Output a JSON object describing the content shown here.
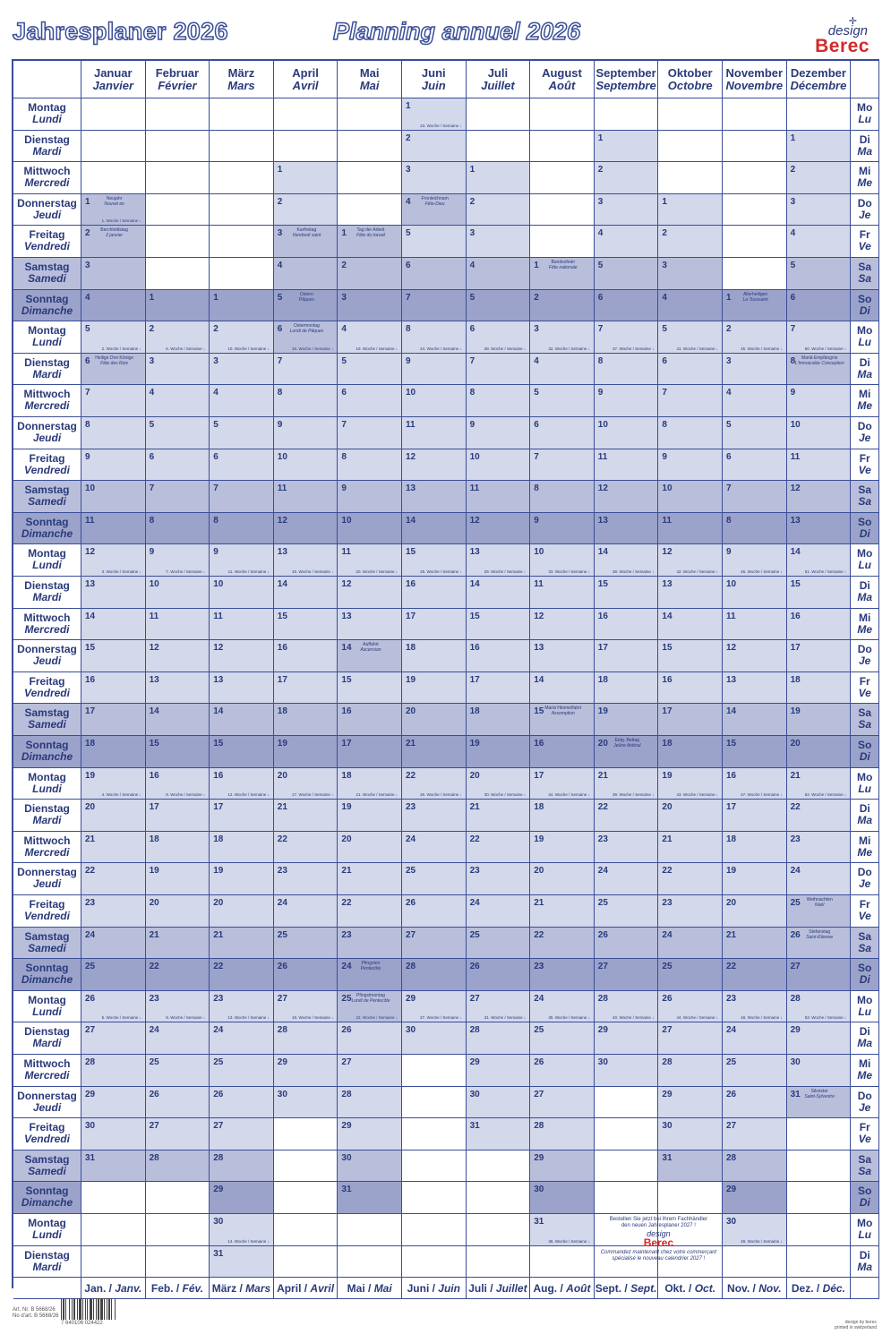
{
  "header": {
    "title_de": "Jahresplaner 2026",
    "title_fr": "Planning annuel 2026",
    "logo_design": "design",
    "logo_brand": "Berec",
    "brand_color": "#d32a2a"
  },
  "months": [
    {
      "de": "Januar",
      "fr": "Janvier",
      "foot_de": "Jan.",
      "foot_fr": "Janv.",
      "start_row": 3,
      "days": 31
    },
    {
      "de": "Februar",
      "fr": "Février",
      "foot_de": "Feb.",
      "foot_fr": "Fév.",
      "start_row": 6,
      "days": 28
    },
    {
      "de": "März",
      "fr": "Mars",
      "foot_de": "März",
      "foot_fr": "Mars",
      "start_row": 6,
      "days": 31
    },
    {
      "de": "April",
      "fr": "Avril",
      "foot_de": "April",
      "foot_fr": "Avril",
      "start_row": 2,
      "days": 30
    },
    {
      "de": "Mai",
      "fr": "Mai",
      "foot_de": "Mai",
      "foot_fr": "Mai",
      "start_row": 4,
      "days": 31
    },
    {
      "de": "Juni",
      "fr": "Juin",
      "foot_de": "Juni",
      "foot_fr": "Juin",
      "start_row": 0,
      "days": 30
    },
    {
      "de": "Juli",
      "fr": "Juillet",
      "foot_de": "Juli",
      "foot_fr": "Juillet",
      "start_row": 2,
      "days": 31
    },
    {
      "de": "August",
      "fr": "Août",
      "foot_de": "Aug.",
      "foot_fr": "Août",
      "start_row": 5,
      "days": 31
    },
    {
      "de": "September",
      "fr": "Septembre",
      "foot_de": "Sept.",
      "foot_fr": "Sept.",
      "start_row": 1,
      "days": 30
    },
    {
      "de": "Oktober",
      "fr": "Octobre",
      "foot_de": "Okt.",
      "foot_fr": "Oct.",
      "start_row": 3,
      "days": 31
    },
    {
      "de": "November",
      "fr": "Novembre",
      "foot_de": "Nov.",
      "foot_fr": "Nov.",
      "start_row": 6,
      "days": 30
    },
    {
      "de": "Dezember",
      "fr": "Décembre",
      "foot_de": "Dez.",
      "foot_fr": "Déc.",
      "start_row": 1,
      "days": 31
    }
  ],
  "weekdays": [
    {
      "de": "Montag",
      "fr": "Lundi",
      "short_de": "Mo",
      "short_fr": "Lu"
    },
    {
      "de": "Dienstag",
      "fr": "Mardi",
      "short_de": "Di",
      "short_fr": "Ma"
    },
    {
      "de": "Mittwoch",
      "fr": "Mercredi",
      "short_de": "Mi",
      "short_fr": "Me"
    },
    {
      "de": "Donnerstag",
      "fr": "Jeudi",
      "short_de": "Do",
      "short_fr": "Je"
    },
    {
      "de": "Freitag",
      "fr": "Vendredi",
      "short_de": "Fr",
      "short_fr": "Ve"
    },
    {
      "de": "Samstag",
      "fr": "Samedi",
      "short_de": "Sa",
      "short_fr": "Sa"
    },
    {
      "de": "Sonntag",
      "fr": "Dimanche",
      "short_de": "So",
      "short_fr": "Di"
    }
  ],
  "week_label": "Woche / Semaine",
  "holidays": [
    {
      "month": 0,
      "day": 1,
      "de": "Neujahr",
      "fr": "Nouvel an"
    },
    {
      "month": 0,
      "day": 2,
      "de": "Berchtoldstag",
      "fr": "2 janvier"
    },
    {
      "month": 0,
      "day": 6,
      "de": "Heilige Drei Könige",
      "fr": "Fête des Rois"
    },
    {
      "month": 3,
      "day": 3,
      "de": "Karfreitag",
      "fr": "Vendredi saint"
    },
    {
      "month": 3,
      "day": 5,
      "de": "Ostern",
      "fr": "Pâques"
    },
    {
      "month": 3,
      "day": 6,
      "de": "Ostermontag",
      "fr": "Lundi de Pâques"
    },
    {
      "month": 4,
      "day": 1,
      "de": "Tag der Arbeit",
      "fr": "Fête du travail"
    },
    {
      "month": 4,
      "day": 14,
      "de": "Auffahrt",
      "fr": "Ascension"
    },
    {
      "month": 4,
      "day": 24,
      "de": "Pfingsten",
      "fr": "Pentecôte"
    },
    {
      "month": 4,
      "day": 25,
      "de": "Pfingstmontag",
      "fr": "Lundi de Pentecôte"
    },
    {
      "month": 5,
      "day": 4,
      "de": "Fronleichnam",
      "fr": "Fête-Dieu"
    },
    {
      "month": 7,
      "day": 1,
      "de": "Bundesfeier",
      "fr": "Fête nationale"
    },
    {
      "month": 7,
      "day": 15,
      "de": "Mariä Himmelfahrt",
      "fr": "Assomption"
    },
    {
      "month": 8,
      "day": 20,
      "de": "Eidg. Bettag",
      "fr": "Jeûne fédéral"
    },
    {
      "month": 10,
      "day": 1,
      "de": "Allerheiligen",
      "fr": "La Toussaint"
    },
    {
      "month": 11,
      "day": 8,
      "de": "Mariä Empfängnis",
      "fr": "L'Immaculée Conception"
    },
    {
      "month": 11,
      "day": 25,
      "de": "Weihnachten",
      "fr": "Noël"
    },
    {
      "month": 11,
      "day": 26,
      "de": "Stefanstag",
      "fr": "Saint-Etienne"
    },
    {
      "month": 11,
      "day": 31,
      "de": "Silvester",
      "fr": "Saint-Sylvestre"
    }
  ],
  "ad": {
    "line1": "Bestellen Sie jetzt bei Ihrem Fachhändler",
    "line2": "den neuen Jahresplaner 2027 !",
    "line3": "Commandez maintenant chez votre commerçant",
    "line4": "spécialisé le nouveau calendrier 2027 !"
  },
  "footer": {
    "art_de": "Art. Nr. B 5668/26",
    "art_fr": "No d'art. B 5668/26",
    "barcode": "7 640106 024422",
    "credit1": "design by berec",
    "credit2": "printed in switzerland"
  }
}
